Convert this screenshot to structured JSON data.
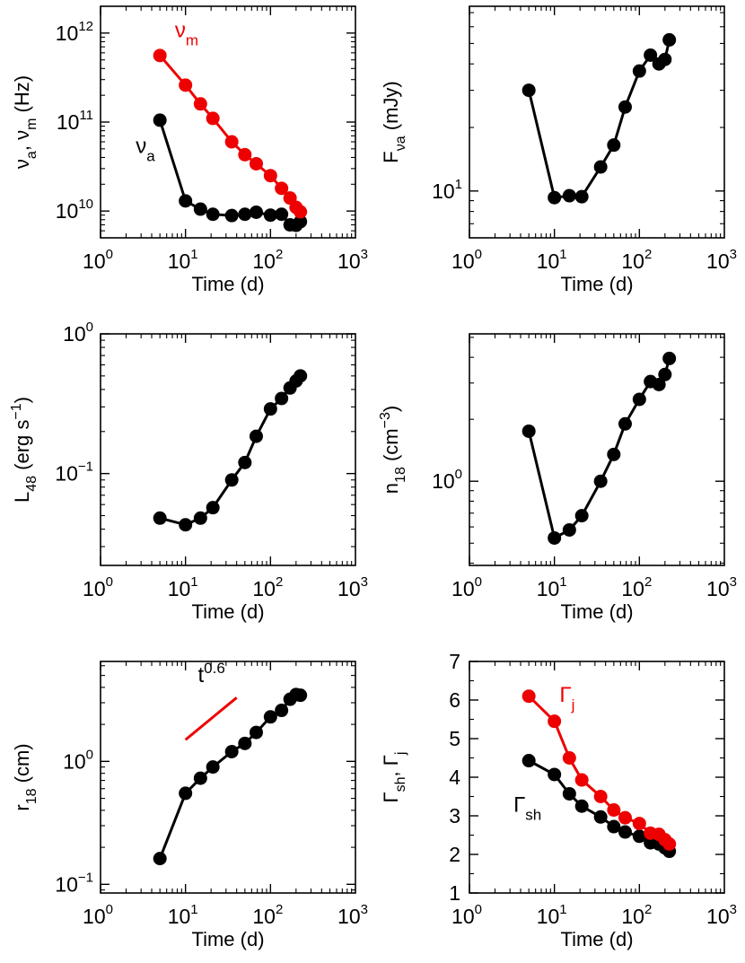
{
  "figure": {
    "type": "multi-panel scatter-line plot"
  },
  "chart_data": [
    {
      "type": "line",
      "xscale": "log",
      "yscale": "log",
      "xlim": [
        1,
        1000
      ],
      "ylim": [
        5000000000.0,
        2000000000000.0
      ],
      "xticks": [
        1,
        10,
        100,
        1000
      ],
      "yticks": [
        10000000000.0,
        100000000000.0,
        1000000000000.0
      ],
      "xlabel": "Time  (d)",
      "ylabel_parts": [
        [
          "ν",
          "a"
        ],
        [
          ", ν",
          "m"
        ],
        [
          "  (Hz)",
          ""
        ]
      ],
      "series": [
        {
          "name": "ν_a",
          "color": "#000000",
          "x": [
            5,
            10,
            15,
            21,
            35,
            50,
            68,
            100,
            135,
            170,
            200,
            225
          ],
          "y": [
            105000000000.0,
            13000000000.0,
            10500000000.0,
            9200000000.0,
            8900000000.0,
            9200000000.0,
            9700000000.0,
            9000000000.0,
            9200000000.0,
            7000000000.0,
            6900000000.0,
            7600000000.0
          ]
        },
        {
          "name": "ν_m",
          "color": "#ee0000",
          "x": [
            5,
            10,
            15,
            21,
            35,
            50,
            68,
            100,
            135,
            170,
            200,
            225
          ],
          "y": [
            560000000000.0,
            260000000000.0,
            160000000000.0,
            110000000000.0,
            60000000000.0,
            43000000000.0,
            34000000000.0,
            25000000000.0,
            18000000000.0,
            14000000000.0,
            11000000000.0,
            9800000000.0
          ]
        }
      ],
      "annotations": [
        {
          "text": "ν",
          "sub": "m",
          "color": "#ee0000",
          "x": 7.5,
          "y": 900000000000.0
        },
        {
          "text": "ν",
          "sub": "a",
          "color": "#000000",
          "x": 2.6,
          "y": 45000000000.0
        }
      ]
    },
    {
      "type": "line",
      "xscale": "log",
      "yscale": "log",
      "xlim": [
        1,
        1000
      ],
      "ylim": [
        6,
        75
      ],
      "xticks": [
        1,
        10,
        100,
        1000
      ],
      "yticks": [
        10
      ],
      "xlabel": "Time  (d)",
      "ylabel_parts": [
        [
          "F",
          "νa"
        ],
        [
          "  (mJy)",
          ""
        ]
      ],
      "series": [
        {
          "name": "F_νa",
          "color": "#000000",
          "x": [
            5,
            10,
            15,
            21,
            35,
            50,
            68,
            100,
            135,
            170,
            200,
            225
          ],
          "y": [
            30,
            9.3,
            9.5,
            9.4,
            13,
            16.5,
            25,
            37,
            44,
            40,
            42,
            52
          ]
        }
      ],
      "annotations": []
    },
    {
      "type": "line",
      "xscale": "log",
      "yscale": "log",
      "xlim": [
        1,
        1000
      ],
      "ylim": [
        0.022,
        1
      ],
      "xticks": [
        1,
        10,
        100,
        1000
      ],
      "yticks": [
        0.1,
        1
      ],
      "xlabel": "Time  (d)",
      "ylabel_parts": [
        [
          "L",
          "48"
        ],
        [
          "  (erg s",
          ""
        ],
        [
          "",
          "−1"
        ],
        [
          ")",
          ""
        ]
      ],
      "series": [
        {
          "name": "L_48",
          "color": "#000000",
          "x": [
            5,
            10,
            15,
            21,
            35,
            50,
            68,
            100,
            135,
            170,
            200,
            225
          ],
          "y": [
            0.048,
            0.043,
            0.048,
            0.057,
            0.09,
            0.12,
            0.185,
            0.29,
            0.345,
            0.41,
            0.46,
            0.5
          ]
        }
      ],
      "annotations": []
    },
    {
      "type": "line",
      "xscale": "log",
      "yscale": "log",
      "xlim": [
        1,
        1000
      ],
      "ylim": [
        0.39,
        5.2
      ],
      "xticks": [
        1,
        10,
        100,
        1000
      ],
      "yticks": [
        1
      ],
      "xlabel": "Time  (d)",
      "ylabel_parts": [
        [
          "n",
          "18"
        ],
        [
          "  (cm",
          ""
        ],
        [
          "",
          "−3"
        ],
        [
          ")",
          ""
        ]
      ],
      "series": [
        {
          "name": "n_18",
          "color": "#000000",
          "x": [
            5,
            10,
            15,
            21,
            35,
            50,
            68,
            100,
            135,
            170,
            200,
            225
          ],
          "y": [
            1.75,
            0.53,
            0.58,
            0.68,
            1.0,
            1.35,
            1.9,
            2.5,
            3.05,
            2.95,
            3.3,
            3.95
          ]
        }
      ],
      "annotations": []
    },
    {
      "type": "line",
      "xscale": "log",
      "yscale": "log",
      "xlim": [
        1,
        1000
      ],
      "ylim": [
        0.085,
        6.5
      ],
      "xticks": [
        1,
        10,
        100,
        1000
      ],
      "yticks": [
        0.1,
        1
      ],
      "xlabel": "Time  (d)",
      "ylabel_parts": [
        [
          "r",
          "18"
        ],
        [
          "  (cm)",
          ""
        ]
      ],
      "series": [
        {
          "name": "r_18",
          "color": "#000000",
          "x": [
            5,
            10,
            15,
            21,
            35,
            50,
            68,
            100,
            135,
            170,
            200,
            225
          ],
          "y": [
            0.162,
            0.55,
            0.73,
            0.9,
            1.2,
            1.4,
            1.72,
            2.3,
            2.6,
            3.2,
            3.5,
            3.45
          ]
        }
      ],
      "reference_line": {
        "label": "t",
        "label_sup": "0.6",
        "color": "#ee0000",
        "x": [
          10,
          40
        ],
        "y": [
          1.5,
          3.3
        ]
      },
      "annotations": [
        {
          "text": "t",
          "sup": "0.6",
          "color": "#000000",
          "x": 14,
          "y": 4.4
        }
      ]
    },
    {
      "type": "line",
      "xscale": "log",
      "yscale": "linear",
      "xlim": [
        1,
        1000
      ],
      "ylim": [
        1,
        7
      ],
      "xticks": [
        1,
        10,
        100,
        1000
      ],
      "yticks": [
        1,
        2,
        3,
        4,
        5,
        6,
        7
      ],
      "xlabel": "Time  (d)",
      "ylabel_parts": [
        [
          "Γ",
          "sh"
        ],
        [
          ", Γ",
          "j"
        ]
      ],
      "series": [
        {
          "name": "Γ_sh",
          "color": "#000000",
          "x": [
            5,
            10,
            15,
            21,
            35,
            50,
            68,
            100,
            135,
            170,
            200,
            225
          ],
          "y": [
            4.43,
            4.07,
            3.57,
            3.25,
            2.97,
            2.72,
            2.58,
            2.47,
            2.3,
            2.27,
            2.17,
            2.08
          ]
        },
        {
          "name": "Γ_j",
          "color": "#ee0000",
          "x": [
            5,
            10,
            15,
            21,
            35,
            50,
            68,
            100,
            135,
            170,
            200,
            225
          ],
          "y": [
            6.1,
            5.45,
            4.5,
            3.93,
            3.5,
            3.15,
            2.95,
            2.8,
            2.55,
            2.52,
            2.38,
            2.27
          ]
        }
      ],
      "annotations": [
        {
          "text": "Γ",
          "sub": "j",
          "color": "#ee0000",
          "x": 11.5,
          "y": 5.95
        },
        {
          "text": "Γ",
          "sub": "sh",
          "color": "#000000",
          "x": 3.3,
          "y": 3.1
        }
      ]
    }
  ]
}
